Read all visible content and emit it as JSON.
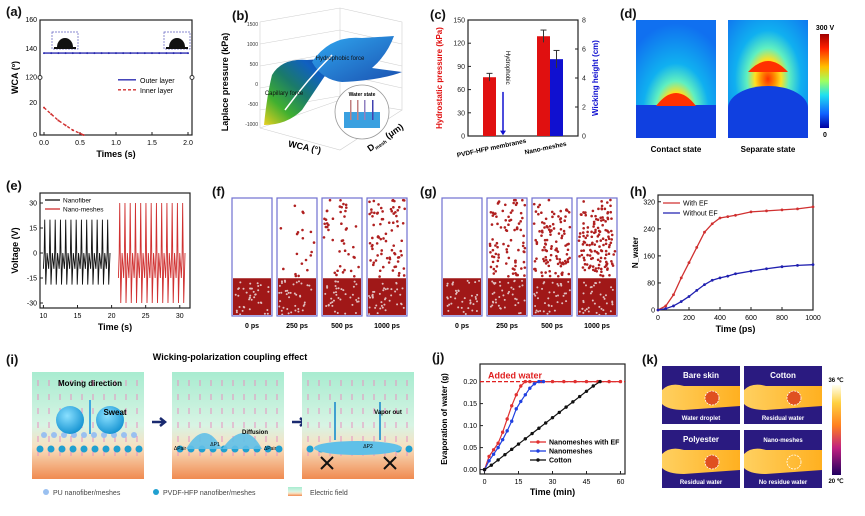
{
  "panels": {
    "a": {
      "label": "(a)"
    },
    "b": {
      "label": "(b)",
      "zlabel": "Laplace pressure (kPa)",
      "xlabel": "WCA (°)",
      "ylabel": "D",
      "ylabel_sub": "mesh",
      "ylabel_unit": " (μm)",
      "ann1": "Hydrophobic force",
      "ann2": "Capillary force",
      "inset_title": "Water state",
      "zticks": [
        "1500",
        "1000",
        "500",
        "0",
        "-500",
        "-1000"
      ]
    },
    "c": {
      "label": "(c)"
    },
    "d": {
      "label": "(d)",
      "left_caption": "Contact state",
      "right_caption": "Separate state",
      "cbar_max": "300 V",
      "cbar_min": "0"
    },
    "e": {
      "label": "(e)"
    },
    "f": {
      "label": "(f)",
      "frames": [
        "0 ps",
        "250 ps",
        "500 ps",
        "1000 ps"
      ]
    },
    "g": {
      "label": "(g)",
      "frames": [
        "0 ps",
        "250 ps",
        "500 ps",
        "1000 ps"
      ]
    },
    "h": {
      "label": "(h)"
    },
    "i": {
      "label": "(i)",
      "title": "Wicking-polarization coupling effect",
      "moving_direction": "Moving direction",
      "sweat": "Sweat",
      "diffusion": "Diffusion",
      "dp_air": "ΔPair",
      "dp1": "ΔP1",
      "dp2": "ΔP2",
      "vapor_out": "Vapor out",
      "legend": [
        "PU nanofiber/meshes",
        "PVDF-HFP nanofiber/meshes",
        "Electric field"
      ]
    },
    "j": {
      "label": "(j)"
    },
    "k": {
      "label": "(k)",
      "tiles": [
        {
          "title": "Bare skin",
          "caption": "Water droplet"
        },
        {
          "title": "Cotton",
          "caption": "Residual water"
        },
        {
          "title": "Polyester",
          "caption": "Residual water"
        },
        {
          "title": "Nano-meshes",
          "caption": "No residue water"
        }
      ],
      "cbar_max": "36 ℃",
      "cbar_min": "20 ℃"
    }
  },
  "chart_data": [
    {
      "id": "a",
      "type": "line",
      "xlabel": "Times (s)",
      "ylabel": "WCA (º)",
      "xlim": [
        0,
        2.0
      ],
      "xticks": [
        "0.0",
        "0.5",
        "1.0",
        "1.5",
        "2.0"
      ],
      "yticks": [
        "0",
        "20",
        "120",
        "140",
        "160"
      ],
      "axis_break": true,
      "series": [
        {
          "name": "Outer layer",
          "color": "#2b2bb0",
          "x": [
            0,
            0.1,
            0.2,
            0.3,
            0.4,
            0.5,
            0.6,
            0.7,
            0.8,
            0.9,
            1.0,
            1.1,
            1.2,
            1.3,
            1.4,
            1.5,
            1.6,
            1.7,
            1.8,
            1.9,
            2.0
          ],
          "y": [
            137,
            137,
            137,
            137,
            137,
            137,
            137,
            137,
            137,
            137,
            137,
            137,
            137,
            137,
            137,
            137,
            137,
            137,
            137,
            137,
            137
          ]
        },
        {
          "name": "Inner layer",
          "color": "#d03030",
          "x": [
            0,
            0.1,
            0.2,
            0.3,
            0.4,
            0.5,
            0.55
          ],
          "y": [
            17,
            13,
            9,
            6,
            3,
            1,
            0
          ]
        }
      ],
      "legend": "center-right"
    },
    {
      "id": "c",
      "type": "bar",
      "categories": [
        "PVDF-HFP membranes",
        "Nano-meshes"
      ],
      "ylabel": "Hydrostatic pressure (kPa)",
      "ylabel2": "Wicking height (cm)",
      "ylim": [
        0,
        150
      ],
      "yticks": [
        0,
        30,
        60,
        90,
        120,
        150
      ],
      "ylim2": [
        0,
        8
      ],
      "yticks2": [
        0,
        2,
        4,
        6,
        8
      ],
      "series": [
        {
          "name": "Hydrostatic pressure",
          "axis": "left",
          "color": "#e01010",
          "values": [
            76,
            129
          ],
          "errors": [
            5,
            8
          ]
        },
        {
          "name": "Wicking height",
          "axis": "right",
          "color": "#1010d0",
          "values": [
            0,
            5.3
          ],
          "errors": [
            0,
            0.6
          ]
        }
      ],
      "annotation": "Hydrophobic"
    },
    {
      "id": "e",
      "type": "line",
      "xlabel": "Time (s)",
      "ylabel": "Voltage (V)",
      "xlim": [
        9.5,
        31.5
      ],
      "xticks": [
        10,
        15,
        20,
        25,
        30
      ],
      "ylim": [
        -33,
        36
      ],
      "yticks": [
        -30,
        -15,
        0,
        15,
        30
      ],
      "series": [
        {
          "name": "Nanofiber",
          "color": "#111111",
          "x_start": 10,
          "x_end": 20,
          "cycles": 13,
          "amplitude_max": 20,
          "amplitude_min": -19
        },
        {
          "name": "Nano-meshes",
          "color": "#d03030",
          "x_start": 21,
          "x_end": 31,
          "cycles": 13,
          "amplitude_max": 30,
          "amplitude_min": -30
        }
      ],
      "legend": "top-left"
    },
    {
      "id": "h",
      "type": "line",
      "xlabel": "Time (ps)",
      "ylabel": "N_water",
      "xlim": [
        0,
        1000
      ],
      "xticks": [
        0,
        200,
        400,
        600,
        800,
        1000
      ],
      "ylim": [
        0,
        340
      ],
      "yticks": [
        0,
        80,
        160,
        240,
        320
      ],
      "series": [
        {
          "name": "With EF",
          "color": "#d03030",
          "x": [
            0,
            50,
            100,
            150,
            200,
            250,
            300,
            350,
            400,
            450,
            500,
            600,
            700,
            800,
            900,
            1000
          ],
          "y": [
            0,
            12,
            45,
            95,
            140,
            185,
            230,
            255,
            272,
            276,
            280,
            290,
            293,
            296,
            299,
            305
          ]
        },
        {
          "name": "Without EF",
          "color": "#2020b0",
          "x": [
            0,
            50,
            100,
            150,
            200,
            250,
            300,
            350,
            400,
            450,
            500,
            600,
            700,
            800,
            900,
            1000
          ],
          "y": [
            0,
            4,
            12,
            25,
            40,
            58,
            75,
            88,
            95,
            100,
            107,
            115,
            122,
            128,
            132,
            134
          ]
        }
      ],
      "legend": "top-left"
    },
    {
      "id": "j",
      "type": "line",
      "xlabel": "Time (min)",
      "ylabel": "Evaporation of water (g)",
      "xlim": [
        -2,
        62
      ],
      "xticks": [
        0,
        15,
        30,
        45,
        60
      ],
      "ylim": [
        -0.01,
        0.24
      ],
      "yticks": [
        "0.00",
        "0.05",
        "0.10",
        "0.15",
        "0.20"
      ],
      "reference_line": {
        "label": "Added water",
        "y": 0.2,
        "color": "#e02020"
      },
      "series": [
        {
          "name": "Nanomeshes with EF",
          "color": "#e03030",
          "x": [
            0,
            2,
            4,
            6,
            8,
            10,
            12,
            14,
            16,
            18,
            20,
            25,
            30,
            35,
            40,
            45,
            50,
            55,
            60
          ],
          "y": [
            0,
            0.03,
            0.045,
            0.06,
            0.085,
            0.115,
            0.145,
            0.17,
            0.19,
            0.2,
            0.2,
            0.2,
            0.2,
            0.2,
            0.2,
            0.2,
            0.2,
            0.2,
            0.2
          ]
        },
        {
          "name": "Nanomeshes",
          "color": "#2040e0",
          "x": [
            0,
            2,
            4,
            6,
            8,
            10,
            12,
            14,
            16,
            18,
            20,
            22,
            24,
            26
          ],
          "y": [
            0,
            0.02,
            0.035,
            0.05,
            0.068,
            0.088,
            0.11,
            0.138,
            0.155,
            0.17,
            0.185,
            0.195,
            0.2,
            0.2
          ]
        },
        {
          "name": "Cotton",
          "color": "#111111",
          "x": [
            0,
            3,
            6,
            9,
            12,
            15,
            18,
            21,
            24,
            27,
            30,
            33,
            36,
            39,
            42,
            45,
            48,
            51
          ],
          "y": [
            0,
            0.01,
            0.022,
            0.034,
            0.046,
            0.058,
            0.07,
            0.082,
            0.094,
            0.106,
            0.118,
            0.13,
            0.142,
            0.154,
            0.166,
            0.178,
            0.19,
            0.2
          ]
        }
      ],
      "legend": "bottom-right"
    }
  ]
}
